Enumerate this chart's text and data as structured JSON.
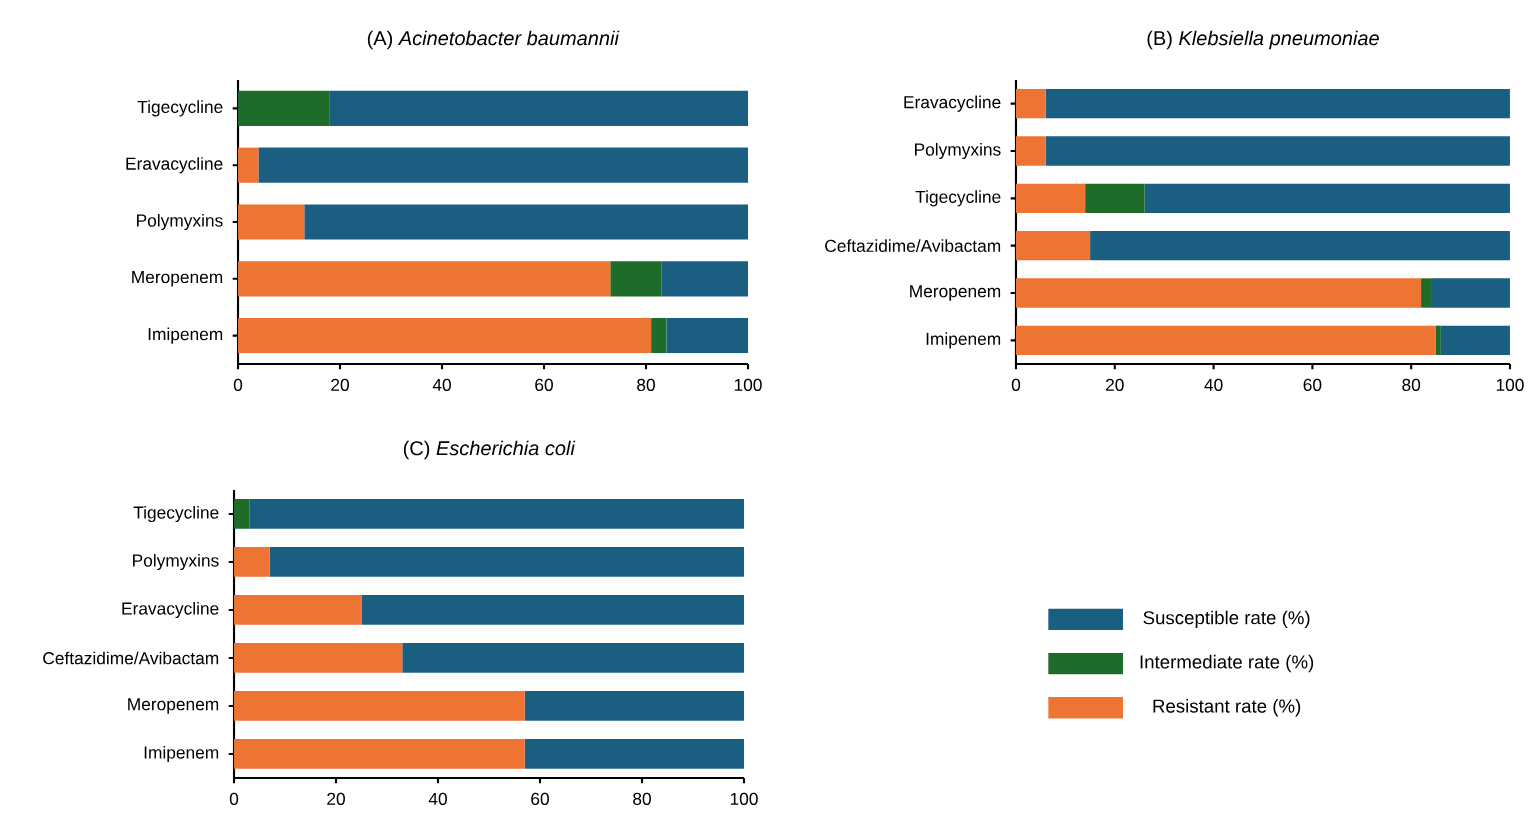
{
  "chart_data": [
    {
      "type": "bar",
      "orientation": "horizontal",
      "stacked": true,
      "title": "(A) *Acinetobacter baumannii*",
      "categories": [
        "Tigecycline",
        "Eravacycline",
        "Polymyxins",
        "Meropenem",
        "Imipenem"
      ],
      "xlim": [
        0,
        100
      ],
      "xticks": [
        0,
        20,
        40,
        60,
        80,
        100
      ],
      "series": [
        {
          "color": "#ed7433",
          "values": [
            0,
            4,
            13,
            73,
            81
          ]
        },
        {
          "color": "#1e6b2a",
          "values": [
            18,
            0,
            0,
            10,
            3
          ]
        },
        {
          "color": "#1a5e82",
          "values": [
            82,
            96,
            87,
            17,
            16
          ]
        }
      ]
    },
    {
      "type": "bar",
      "orientation": "horizontal",
      "stacked": true,
      "title": "(B) *Klebsiella pneumoniae*",
      "categories": [
        "Eravacycline",
        "Polymyxins",
        "Tigecycline",
        "Ceftazidime/Avibactam",
        "Meropenem",
        "Imipenem"
      ],
      "xlim": [
        0,
        100
      ],
      "xticks": [
        0,
        20,
        40,
        60,
        80,
        100
      ],
      "series": [
        {
          "color": "#ed7433",
          "values": [
            6,
            6,
            14,
            15,
            82,
            85
          ]
        },
        {
          "color": "#1e6b2a",
          "values": [
            0,
            0,
            12,
            0,
            2,
            1
          ]
        },
        {
          "color": "#1a5e82",
          "values": [
            94,
            94,
            74,
            85,
            16,
            14
          ]
        }
      ]
    },
    {
      "type": "bar",
      "orientation": "horizontal",
      "stacked": true,
      "title": "(C) *Escherichia coli*",
      "categories": [
        "Tigecycline",
        "Polymyxins",
        "Eravacycline",
        "Ceftazidime/Avibactam",
        "Meropenem",
        "Imipenem"
      ],
      "xlim": [
        0,
        100
      ],
      "xticks": [
        0,
        20,
        40,
        60,
        80,
        100
      ],
      "legend": "right",
      "series": [
        {
          "name": "Resistant rate (%)",
          "color": "#ed7433",
          "values": [
            0,
            7,
            25,
            33,
            57,
            57
          ]
        },
        {
          "name": "Intermediate rate (%)",
          "color": "#1e6b2a",
          "values": [
            3,
            0,
            0,
            0,
            0,
            0
          ]
        },
        {
          "name": "Susceptible rate (%)",
          "color": "#1a5e82",
          "values": [
            97,
            93,
            75,
            67,
            43,
            43
          ]
        }
      ]
    }
  ]
}
